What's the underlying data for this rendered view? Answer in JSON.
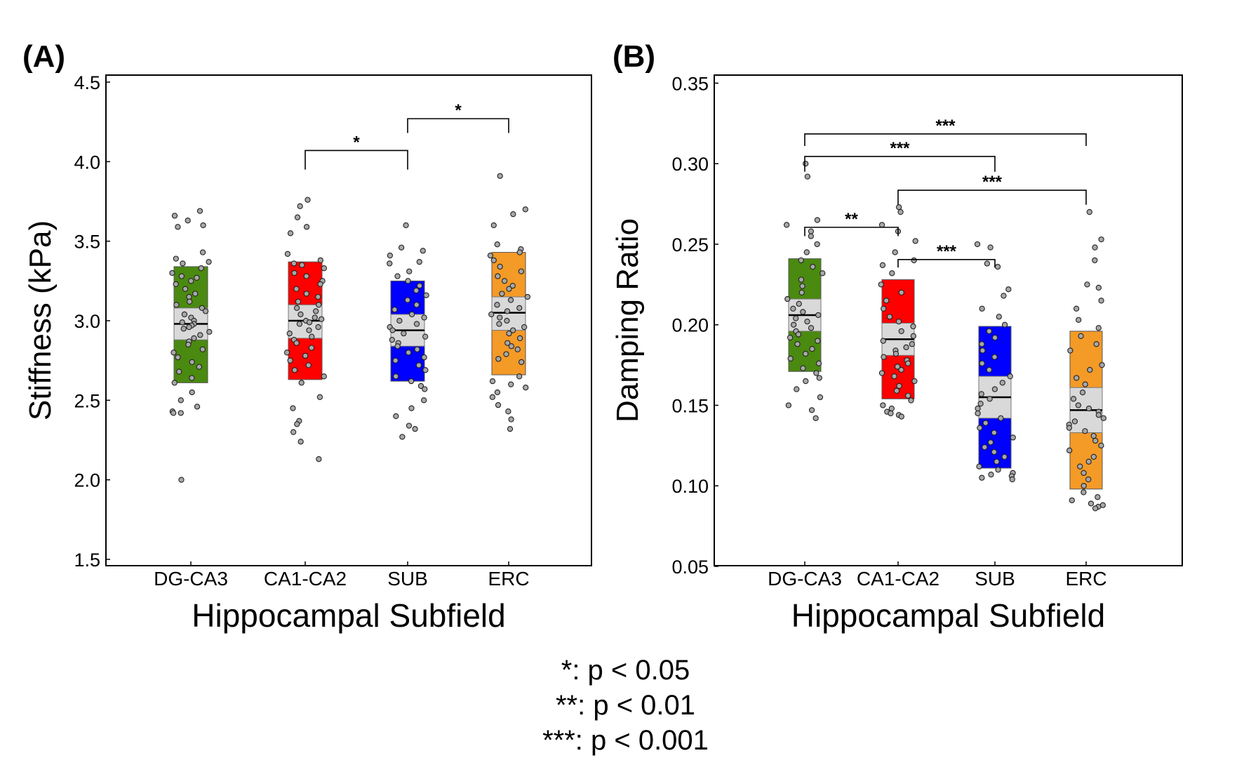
{
  "panels": [
    {
      "panel_label": "(A)",
      "chart_data": {
        "type": "box",
        "title": "",
        "xlabel": "Hippocampal Subfield",
        "ylabel": "Stiffness (kPa)",
        "ylim": [
          1.5,
          4.5
        ],
        "yticks": [
          "1.5",
          "2.0",
          "2.5",
          "3.0",
          "3.5",
          "4.0",
          "4.5"
        ],
        "categories": [
          "DG-CA3",
          "CA1-CA2",
          "SUB",
          "ERC"
        ],
        "colors": [
          "#4a8a10",
          "#ff0000",
          "#0000ff",
          "#f49a26"
        ],
        "series": [
          {
            "name": "DG-CA3",
            "q1": 2.61,
            "q3": 3.34,
            "ci_low": 2.88,
            "ci_high": 3.08,
            "mean": 2.98,
            "points": [
              3.69,
              3.66,
              3.63,
              3.6,
              3.59,
              3.43,
              3.39,
              3.37,
              3.36,
              3.33,
              3.3,
              3.28,
              3.27,
              3.25,
              3.23,
              3.2,
              3.17,
              3.15,
              3.12,
              3.1,
              3.08,
              3.06,
              3.04,
              3.02,
              3.0,
              2.99,
              2.98,
              2.97,
              2.96,
              2.95,
              2.93,
              2.91,
              2.89,
              2.87,
              2.85,
              2.82,
              2.8,
              2.77,
              2.74,
              2.71,
              2.68,
              2.64,
              2.61,
              2.55,
              2.5,
              2.46,
              2.43,
              2.42,
              2.42,
              2.0
            ]
          },
          {
            "name": "CA1-CA2",
            "q1": 2.63,
            "q3": 3.37,
            "ci_low": 2.89,
            "ci_high": 3.1,
            "mean": 3.0,
            "points": [
              3.76,
              3.72,
              3.65,
              3.59,
              3.55,
              3.42,
              3.38,
              3.36,
              3.35,
              3.33,
              3.3,
              3.28,
              3.25,
              3.23,
              3.2,
              3.17,
              3.15,
              3.12,
              3.1,
              3.08,
              3.06,
              3.04,
              3.02,
              3.01,
              3.0,
              2.99,
              2.98,
              2.96,
              2.94,
              2.92,
              2.9,
              2.88,
              2.86,
              2.83,
              2.8,
              2.78,
              2.75,
              2.72,
              2.69,
              2.65,
              2.61,
              2.52,
              2.45,
              2.37,
              2.35,
              2.3,
              2.24,
              2.13
            ]
          },
          {
            "name": "SUB",
            "q1": 2.62,
            "q3": 3.25,
            "ci_low": 2.84,
            "ci_high": 3.04,
            "mean": 2.94,
            "points": [
              3.6,
              3.46,
              3.44,
              3.41,
              3.37,
              3.36,
              3.31,
              3.28,
              3.25,
              3.22,
              3.19,
              3.16,
              3.13,
              3.1,
              3.07,
              3.04,
              3.02,
              3.0,
              2.98,
              2.96,
              2.94,
              2.92,
              2.9,
              2.88,
              2.86,
              2.84,
              2.82,
              2.8,
              2.77,
              2.75,
              2.72,
              2.69,
              2.65,
              2.62,
              2.59,
              2.57,
              2.5,
              2.45,
              2.4,
              2.34,
              2.32,
              2.27
            ]
          },
          {
            "name": "ERC",
            "q1": 2.66,
            "q3": 3.43,
            "ci_low": 2.94,
            "ci_high": 3.15,
            "mean": 3.05,
            "points": [
              3.91,
              3.7,
              3.67,
              3.6,
              3.48,
              3.45,
              3.43,
              3.41,
              3.38,
              3.34,
              3.31,
              3.28,
              3.25,
              3.22,
              3.2,
              3.17,
              3.15,
              3.13,
              3.1,
              3.08,
              3.06,
              3.04,
              3.02,
              3.0,
              2.98,
              2.96,
              2.94,
              2.92,
              2.89,
              2.86,
              2.84,
              2.82,
              2.79,
              2.76,
              2.74,
              2.65,
              2.62,
              2.6,
              2.58,
              2.55,
              2.52,
              2.47,
              2.43,
              2.38,
              2.32
            ]
          }
        ],
        "significance": [
          {
            "from": 1,
            "to": 2,
            "label": "*",
            "y": 4.07,
            "drop": 0.12
          },
          {
            "from": 2,
            "to": 3,
            "label": "*",
            "y": 4.27,
            "drop": 0.09
          }
        ]
      }
    },
    {
      "panel_label": "(B)",
      "chart_data": {
        "type": "box",
        "title": "",
        "xlabel": "Hippocampal Subfield",
        "ylabel": "Damping Ratio",
        "ylim": [
          0.05,
          0.355
        ],
        "yticks": [
          "0.05",
          "0.10",
          "0.15",
          "0.20",
          "0.25",
          "0.30",
          "0.35"
        ],
        "categories": [
          "DG-CA3",
          "CA1-CA2",
          "SUB",
          "ERC"
        ],
        "colors": [
          "#4a8a10",
          "#ff0000",
          "#0000ff",
          "#f49a26"
        ],
        "series": [
          {
            "name": "DG-CA3",
            "q1": 0.171,
            "q3": 0.241,
            "ci_low": 0.196,
            "ci_high": 0.216,
            "mean": 0.206,
            "points": [
              0.3,
              0.292,
              0.265,
              0.262,
              0.258,
              0.255,
              0.25,
              0.245,
              0.24,
              0.236,
              0.232,
              0.228,
              0.224,
              0.22,
              0.216,
              0.213,
              0.21,
              0.208,
              0.206,
              0.204,
              0.202,
              0.2,
              0.198,
              0.196,
              0.194,
              0.192,
              0.19,
              0.188,
              0.185,
              0.182,
              0.179,
              0.176,
              0.173,
              0.17,
              0.167,
              0.165,
              0.16,
              0.155,
              0.15,
              0.147,
              0.142
            ]
          },
          {
            "name": "CA1-CA2",
            "q1": 0.154,
            "q3": 0.228,
            "ci_low": 0.181,
            "ci_high": 0.201,
            "mean": 0.191,
            "points": [
              0.273,
              0.27,
              0.262,
              0.258,
              0.252,
              0.245,
              0.24,
              0.237,
              0.232,
              0.225,
              0.22,
              0.215,
              0.21,
              0.205,
              0.202,
              0.199,
              0.196,
              0.193,
              0.19,
              0.188,
              0.186,
              0.184,
              0.182,
              0.18,
              0.178,
              0.176,
              0.174,
              0.172,
              0.17,
              0.168,
              0.165,
              0.162,
              0.159,
              0.156,
              0.153,
              0.15,
              0.148,
              0.146,
              0.145,
              0.144,
              0.143
            ]
          },
          {
            "name": "SUB",
            "q1": 0.111,
            "q3": 0.199,
            "ci_low": 0.142,
            "ci_high": 0.168,
            "mean": 0.155,
            "points": [
              0.25,
              0.248,
              0.238,
              0.236,
              0.222,
              0.218,
              0.21,
              0.205,
              0.2,
              0.196,
              0.192,
              0.188,
              0.184,
              0.18,
              0.176,
              0.172,
              0.168,
              0.164,
              0.16,
              0.157,
              0.154,
              0.151,
              0.148,
              0.145,
              0.142,
              0.139,
              0.136,
              0.133,
              0.13,
              0.127,
              0.124,
              0.121,
              0.118,
              0.115,
              0.112,
              0.11,
              0.108,
              0.107,
              0.106,
              0.105,
              0.104
            ]
          },
          {
            "name": "ERC",
            "q1": 0.098,
            "q3": 0.196,
            "ci_low": 0.133,
            "ci_high": 0.161,
            "mean": 0.147,
            "points": [
              0.27,
              0.253,
              0.248,
              0.24,
              0.225,
              0.223,
              0.215,
              0.21,
              0.203,
              0.198,
              0.193,
              0.188,
              0.184,
              0.175,
              0.172,
              0.167,
              0.163,
              0.158,
              0.154,
              0.15,
              0.148,
              0.146,
              0.144,
              0.142,
              0.14,
              0.138,
              0.136,
              0.134,
              0.131,
              0.128,
              0.125,
              0.122,
              0.118,
              0.115,
              0.112,
              0.108,
              0.104,
              0.1,
              0.096,
              0.093,
              0.091,
              0.089,
              0.088,
              0.087,
              0.086
            ]
          }
        ],
        "significance": [
          {
            "from": 0,
            "to": 1,
            "label": "**",
            "y": 0.2605,
            "drop": 0.0055
          },
          {
            "from": 1,
            "to": 2,
            "label": "***",
            "y": 0.2405,
            "drop": 0.005
          },
          {
            "from": 1,
            "to": 3,
            "label": "***",
            "y": 0.2835,
            "drop": 0.009
          },
          {
            "from": 0,
            "to": 2,
            "label": "***",
            "y": 0.3045,
            "drop": 0.0095
          },
          {
            "from": 0,
            "to": 3,
            "label": "***",
            "y": 0.3185,
            "drop": 0.0075
          }
        ]
      }
    }
  ],
  "legend": [
    "*: p < 0.05",
    "**: p < 0.01",
    "***: p < 0.001"
  ]
}
